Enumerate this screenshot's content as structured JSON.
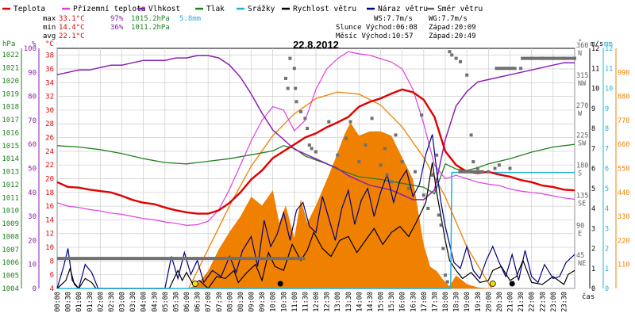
{
  "chart_data": {
    "type": "line",
    "title": "22.8.2012",
    "legend": [
      {
        "name": "Teplota",
        "color": "#e00000"
      },
      {
        "name": "Přízemní teplota",
        "color": "#e040e0"
      },
      {
        "name": "Vlhkost",
        "color": "#8a20b0"
      },
      {
        "name": "Tlak",
        "color": "#208020"
      },
      {
        "name": "Srážky",
        "color": "#20b0d8"
      },
      {
        "name": "Rychlost větru",
        "color": "#000000"
      },
      {
        "name": "Náraz větru",
        "color": "#000080"
      },
      {
        "name": "Směr větru",
        "color": "#606060"
      }
    ],
    "stats": {
      "max": {
        "label": "max",
        "temp": "33.1°C",
        "hum": "97%",
        "press": "1015.2hPa",
        "rain": "5.8mm"
      },
      "min": {
        "label": "min",
        "temp": "14.4°C",
        "hum": "36%",
        "press": "1011.2hPa"
      },
      "avg": {
        "label": "avg",
        "temp": "22.1°C"
      }
    },
    "wind_info": {
      "ws": "WS:7.7m/s",
      "wg": "WG:7.7m/s"
    },
    "sun_info": {
      "rise": "Slunce Východ:06:08",
      "set": "Západ:20:09"
    },
    "moon_info": {
      "rise": "Měsíc  Východ:10:57",
      "set": "Západ:20:49"
    },
    "axis_units": {
      "hpa": "hPa",
      "pct": "%",
      "degc": "°C",
      "deg": "°",
      "ms": "m/s",
      "mm": "mm",
      "time": "čas"
    },
    "x_ticks": [
      "00:00",
      "00:30",
      "01:00",
      "01:30",
      "02:00",
      "02:30",
      "03:00",
      "03:30",
      "04:00",
      "04:30",
      "05:00",
      "05:30",
      "06:00",
      "06:30",
      "07:00",
      "07:30",
      "08:00",
      "08:30",
      "09:00",
      "09:30",
      "10:00",
      "10:30",
      "11:00",
      "11:30",
      "12:00",
      "12:30",
      "13:00",
      "13:30",
      "14:00",
      "14:30",
      "15:00",
      "15:30",
      "16:00",
      "16:30",
      "17:00",
      "17:30",
      "18:00",
      "18:30",
      "19:00",
      "19:30",
      "20:00",
      "20:30",
      "21:00",
      "21:30",
      "22:00",
      "22:30",
      "23:00",
      "23:30"
    ],
    "pressure_ticks": [
      "1022",
      "1021",
      "1020",
      "1019",
      "1018",
      "1017",
      "1016",
      "1015",
      "1014",
      "1013",
      "1012",
      "1011",
      "1010",
      "1009",
      "1008",
      "1007",
      "1006",
      "1005",
      "1004"
    ],
    "humidity_ticks": [
      "100",
      "90",
      "80",
      "70",
      "60",
      "50",
      "40",
      "30",
      "20",
      "10",
      "0"
    ],
    "temp_ticks": [
      "38",
      "36",
      "34",
      "32",
      "30",
      "28",
      "26",
      "24",
      "22",
      "20",
      "18",
      "16",
      "14",
      "12",
      "10",
      "8",
      "6",
      "4"
    ],
    "direction_ticks": [
      {
        "deg": "360",
        "dir": "N"
      },
      {
        "deg": "315",
        "dir": "NW"
      },
      {
        "deg": "270",
        "dir": "W"
      },
      {
        "deg": "225",
        "dir": "SW"
      },
      {
        "deg": "180",
        "dir": "S"
      },
      {
        "deg": "135",
        "dir": "SE"
      },
      {
        "deg": "90",
        "dir": "E"
      },
      {
        "deg": "45",
        "dir": "NE"
      }
    ],
    "wind_ticks": [
      "12",
      "11",
      "10",
      "9",
      "8",
      "7",
      "6",
      "5",
      "4",
      "3",
      "2",
      "1",
      "0"
    ],
    "rain_ticks": [
      "12",
      "11",
      "10",
      "9",
      "8",
      "7",
      "6",
      "5",
      "4",
      "3",
      "2",
      "1",
      "0"
    ],
    "solar_ticks": [
      "990",
      "880",
      "770",
      "660",
      "550",
      "440",
      "330",
      "220",
      "110"
    ],
    "ranges": {
      "pressure": [
        1004,
        1022.5
      ],
      "humidity": [
        0,
        100
      ],
      "temp": [
        4,
        39
      ],
      "direction": [
        0,
        360
      ],
      "wind": [
        0,
        12
      ],
      "solar": [
        0,
        1100
      ],
      "hours": [
        0,
        24
      ]
    },
    "series": {
      "temperature": {
        "x": [
          0,
          0.5,
          1,
          1.5,
          2,
          2.5,
          3,
          3.5,
          4,
          4.5,
          5,
          5.5,
          6,
          6.5,
          7,
          7.5,
          8,
          8.5,
          9,
          9.5,
          10,
          10.5,
          11,
          11.5,
          12,
          12.5,
          13,
          13.5,
          14,
          14.5,
          15,
          15.5,
          16,
          16.5,
          17,
          17.5,
          18,
          18.5,
          19,
          19.5,
          20,
          20.5,
          21,
          21.5,
          22,
          22.5,
          23,
          23.5,
          24
        ],
        "y": [
          19.5,
          18.8,
          18.7,
          18.4,
          18.2,
          18.0,
          17.5,
          16.9,
          16.5,
          16.3,
          15.8,
          15.4,
          15.1,
          14.9,
          14.9,
          15.4,
          16.5,
          18.0,
          19.9,
          21.2,
          23.0,
          24.0,
          25.0,
          26.0,
          26.6,
          27.5,
          28.2,
          29.0,
          30.5,
          31.2,
          31.7,
          32.4,
          33.0,
          32.6,
          31.5,
          29.0,
          24.0,
          22.0,
          21.0,
          20.8,
          21.0,
          20.6,
          20.3,
          19.8,
          19.5,
          19.0,
          18.8,
          18.4,
          18.3
        ]
      },
      "ground_temperature": {
        "x": [
          0,
          0.5,
          1,
          1.5,
          2,
          2.5,
          3,
          3.5,
          4,
          4.5,
          5,
          5.5,
          6,
          6.5,
          7,
          7.5,
          8,
          8.5,
          9,
          9.5,
          10,
          10.5,
          11,
          11.5,
          12,
          12.5,
          13,
          13.5,
          14,
          14.5,
          15,
          15.5,
          16,
          16.5,
          17,
          17.5,
          18,
          18.5,
          19,
          19.5,
          20,
          20.5,
          21,
          21.5,
          22,
          22.5,
          23,
          23.5,
          24
        ],
        "y": [
          16.5,
          16.0,
          15.8,
          15.5,
          15.3,
          15.0,
          14.8,
          14.5,
          14.2,
          14.0,
          13.7,
          13.5,
          13.2,
          13.3,
          13.8,
          15.5,
          18.5,
          22.0,
          25.5,
          28.5,
          30.5,
          30.0,
          27.0,
          28.5,
          33.0,
          36.0,
          37.5,
          38.5,
          38.2,
          38.0,
          37.5,
          37.0,
          36.0,
          33.0,
          28.0,
          22.0,
          20.0,
          20.5,
          20.0,
          19.5,
          19.2,
          19.0,
          18.5,
          18.2,
          18.0,
          17.8,
          17.5,
          17.2,
          17.0
        ]
      },
      "humidity": {
        "x": [
          0,
          0.5,
          1,
          1.5,
          2,
          2.5,
          3,
          3.5,
          4,
          4.5,
          5,
          5.5,
          6,
          6.5,
          7,
          7.5,
          8,
          8.5,
          9,
          9.5,
          10,
          10.5,
          11,
          11.5,
          12,
          12.5,
          13,
          13.5,
          14,
          14.5,
          15,
          15.5,
          16,
          16.5,
          17,
          17.5,
          18,
          18.5,
          19,
          19.5,
          20,
          20.5,
          21,
          21.5,
          22,
          22.5,
          23,
          23.5,
          24
        ],
        "y": [
          89,
          90,
          91,
          91,
          92,
          93,
          93,
          94,
          95,
          95,
          95,
          96,
          96,
          97,
          97,
          96,
          93,
          88,
          81,
          73,
          66,
          62,
          58,
          56,
          54,
          52,
          50,
          47,
          45,
          43,
          42,
          41,
          39,
          37,
          37,
          41,
          62,
          76,
          82,
          86,
          87,
          88,
          89,
          90,
          91,
          92,
          93,
          94,
          94
        ]
      },
      "pressure": {
        "x": [
          0,
          1,
          2,
          3,
          4,
          5,
          6,
          7,
          8,
          9,
          10,
          10.5,
          11,
          11.5,
          12,
          12.5,
          13,
          13.5,
          14,
          15,
          16,
          17,
          17.5,
          18,
          18.5,
          19,
          19.5,
          20,
          21,
          22,
          23,
          24
        ],
        "y": [
          1015.0,
          1014.9,
          1014.7,
          1014.4,
          1014.0,
          1013.7,
          1013.6,
          1013.8,
          1014.0,
          1014.3,
          1014.6,
          1015.0,
          1014.8,
          1014.2,
          1013.9,
          1013.6,
          1013.2,
          1012.9,
          1012.6,
          1012.4,
          1012.1,
          1011.8,
          1011.3,
          1013.6,
          1013.2,
          1013.1,
          1013.3,
          1013.6,
          1014.0,
          1014.5,
          1014.9,
          1015.1
        ]
      },
      "rain_total": {
        "x": [
          0,
          18.25,
          18.3,
          18.5,
          24
        ],
        "y": [
          0,
          0,
          5.8,
          5.8,
          5.8
        ]
      },
      "wind_speed": {
        "x": [
          0,
          0.4,
          0.6,
          0.8,
          1,
          1.3,
          1.6,
          1.8,
          2,
          5.2,
          5.6,
          5.8,
          6,
          6.3,
          6.6,
          7,
          7.4,
          7.8,
          8.2,
          8.4,
          8.8,
          9.2,
          9.5,
          9.8,
          10.1,
          10.5,
          10.9,
          11.3,
          11.6,
          11.9,
          12.3,
          12.7,
          13.1,
          13.5,
          13.9,
          14.3,
          14.7,
          15.1,
          15.5,
          15.9,
          16.3,
          16.7,
          17.1,
          17.4,
          17.6,
          17.8,
          18,
          18.2,
          18.5,
          18.8,
          19.2,
          19.6,
          20,
          20.2,
          20.6,
          21,
          21.3,
          21.6,
          22,
          22.5,
          23,
          23.5,
          23.7,
          24
        ],
        "y": [
          0,
          0.4,
          1.0,
          0.2,
          0,
          0.5,
          0.3,
          0,
          0,
          0,
          0.9,
          0.4,
          0.8,
          0.2,
          0.4,
          0,
          0.6,
          0.5,
          0.9,
          0.3,
          0.8,
          1.2,
          0.4,
          1.8,
          1.1,
          0.9,
          2.2,
          1.4,
          1.9,
          2.8,
          2.0,
          1.6,
          2.4,
          2.6,
          1.8,
          2.4,
          3.0,
          2.2,
          2.8,
          3.1,
          2.6,
          3.4,
          4.3,
          6.3,
          4.8,
          3.6,
          2.4,
          1.4,
          0.9,
          0.5,
          0.8,
          0.3,
          0.4,
          0.9,
          1.1,
          0.4,
          0.6,
          1.4,
          0.3,
          0.2,
          0.6,
          0.2,
          0.7,
          0.9
        ]
      },
      "wind_gust": {
        "x": [
          0,
          0.3,
          0.5,
          0.7,
          1,
          1.3,
          1.6,
          1.9,
          2.2,
          5.0,
          5.3,
          5.6,
          5.9,
          6.2,
          6.5,
          6.8,
          7.2,
          7.6,
          8,
          8.3,
          8.6,
          9,
          9.3,
          9.6,
          9.9,
          10.2,
          10.5,
          10.8,
          11.1,
          11.4,
          11.7,
          12,
          12.3,
          12.6,
          12.9,
          13.2,
          13.5,
          13.8,
          14.1,
          14.4,
          14.7,
          15,
          15.3,
          15.6,
          15.9,
          16.2,
          16.5,
          16.8,
          17.1,
          17.4,
          17.6,
          17.8,
          18,
          18.2,
          18.4,
          18.7,
          19,
          19.3,
          19.6,
          19.9,
          20.2,
          20.5,
          20.8,
          21.1,
          21.4,
          21.7,
          22,
          22.3,
          22.6,
          23,
          23.3,
          23.6,
          24
        ],
        "y": [
          0,
          1.1,
          2.0,
          0.4,
          0,
          1.2,
          0.8,
          0,
          0,
          0,
          1.6,
          0.5,
          1.8,
          0.7,
          1.4,
          0.3,
          0.9,
          0.6,
          1.6,
          0.8,
          1.9,
          2.6,
          1.1,
          3.4,
          2.1,
          2.7,
          3.8,
          2.4,
          3.9,
          4.3,
          3.1,
          2.8,
          4.6,
          3.5,
          2.4,
          4.0,
          4.9,
          3.2,
          4.4,
          5.0,
          3.6,
          4.8,
          5.7,
          4.3,
          5.4,
          5.9,
          4.6,
          5.2,
          6.7,
          7.7,
          5.9,
          4.3,
          3.1,
          2.2,
          1.3,
          1.0,
          2.1,
          0.9,
          0.5,
          1.4,
          2.1,
          1.3,
          0.6,
          1.7,
          0.4,
          1.9,
          0.6,
          0.3,
          1.2,
          0.5,
          0.6,
          1.3,
          1.7
        ]
      },
      "solar": {
        "x": [
          6.1,
          6.5,
          7,
          7.5,
          8,
          8.5,
          9,
          9.5,
          10,
          10.3,
          10.6,
          11,
          11.3,
          11.6,
          12,
          12.3,
          12.6,
          13,
          13.3,
          13.6,
          14,
          14.5,
          15,
          15.5,
          16,
          16.5,
          17,
          17.3,
          17.6,
          17.9,
          18.2,
          18.5,
          19,
          19.5,
          20.15
        ],
        "y": [
          0,
          20,
          80,
          180,
          260,
          330,
          420,
          380,
          450,
          300,
          380,
          230,
          410,
          300,
          380,
          450,
          520,
          620,
          700,
          760,
          700,
          720,
          720,
          700,
          600,
          500,
          200,
          100,
          80,
          40,
          10,
          60,
          20,
          5,
          0
        ]
      },
      "solar_max": {
        "x": [
          6.1,
          7,
          8,
          9,
          10,
          11,
          12,
          13,
          14,
          15,
          16,
          17,
          18,
          19,
          20.15
        ],
        "y": [
          0,
          180,
          380,
          560,
          700,
          800,
          870,
          900,
          890,
          840,
          740,
          600,
          420,
          190,
          0
        ]
      },
      "wind_direction": {
        "x": [
          10.6,
          10.7,
          10.8,
          11.0,
          11.05,
          11.1,
          11.3,
          11.5,
          11.6,
          11.7,
          11.8,
          12.0,
          12.6,
          13.0,
          13.4,
          13.6,
          14.0,
          14.3,
          14.6,
          15.0,
          15.2,
          15.3,
          15.5,
          15.7,
          16.0,
          16.3,
          16.6,
          16.9,
          17.0,
          17.2,
          17.4,
          17.6,
          17.7,
          17.8,
          17.9,
          18.0,
          18.1,
          18.2,
          18.3,
          18.5,
          18.7,
          19.0,
          19.2,
          19.3,
          19.5,
          20.0,
          20.3,
          20.5,
          21.0,
          21.5,
          22.0,
          22.5,
          23.0,
          23.5,
          24
        ],
        "y": [
          315,
          300,
          345,
          330,
          300,
          280,
          265,
          255,
          240,
          215,
          210,
          205,
          250,
          200,
          225,
          250,
          190,
          215,
          255,
          185,
          210,
          170,
          160,
          230,
          190,
          150,
          175,
          260,
          140,
          120,
          170,
          200,
          110,
          95,
          60,
          20,
          10,
          355,
          350,
          345,
          340,
          320,
          230,
          190,
          180,
          175,
          180,
          185,
          180,
          330,
          345,
          345,
          345,
          345,
          345
        ]
      }
    },
    "markers": {
      "yellow": [
        6.4,
        20.2
      ],
      "black": [
        10.35,
        21.1
      ]
    }
  }
}
